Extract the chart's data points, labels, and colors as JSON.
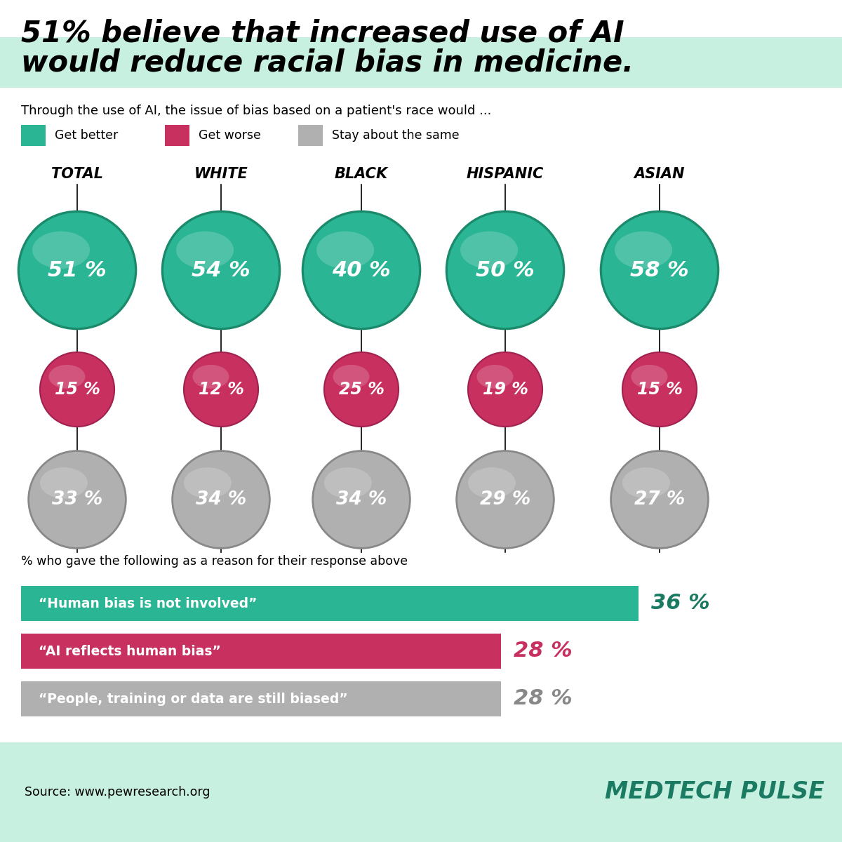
{
  "title_line1": "51% believe that increased use of AI",
  "title_line2": "would reduce racial bias in medicine.",
  "title_highlight_color": "#c8f0e0",
  "subtitle": "Through the use of AI, the issue of bias based on a patient's race would ...",
  "legend_items": [
    "Get better",
    "Get worse",
    "Stay about the same"
  ],
  "legend_colors": [
    "#2ab595",
    "#c83060",
    "#b0b0b0"
  ],
  "categories": [
    "TOTAL",
    "WHITE",
    "BLACK",
    "HISPANIC",
    "ASIAN"
  ],
  "get_better": [
    51,
    54,
    40,
    50,
    58
  ],
  "get_worse": [
    15,
    12,
    25,
    19,
    15
  ],
  "stay_same": [
    33,
    34,
    34,
    29,
    27
  ],
  "color_better": "#2ab595",
  "color_worse": "#c83060",
  "color_same": "#b0b0b0",
  "color_better_dark": "#1a8a6a",
  "color_worse_dark": "#a02050",
  "color_same_dark": "#888888",
  "bar_labels": [
    "“Human bias is not involved”",
    "“AI reflects human bias”",
    "“People, training or data are still biased”"
  ],
  "bar_values": [
    36,
    28,
    28
  ],
  "bar_colors": [
    "#2ab595",
    "#c83060",
    "#b0b0b0"
  ],
  "bar_text_colors": [
    "#1a7a62",
    "#c83060",
    "#888888"
  ],
  "bar_label_subtitle": "% who gave the following as a reason for their response above",
  "source": "Source: www.pewresearch.org",
  "brand": "MEDTECH PULSE",
  "footer_bg": "#c8f0e0",
  "bg_color": "#ffffff"
}
